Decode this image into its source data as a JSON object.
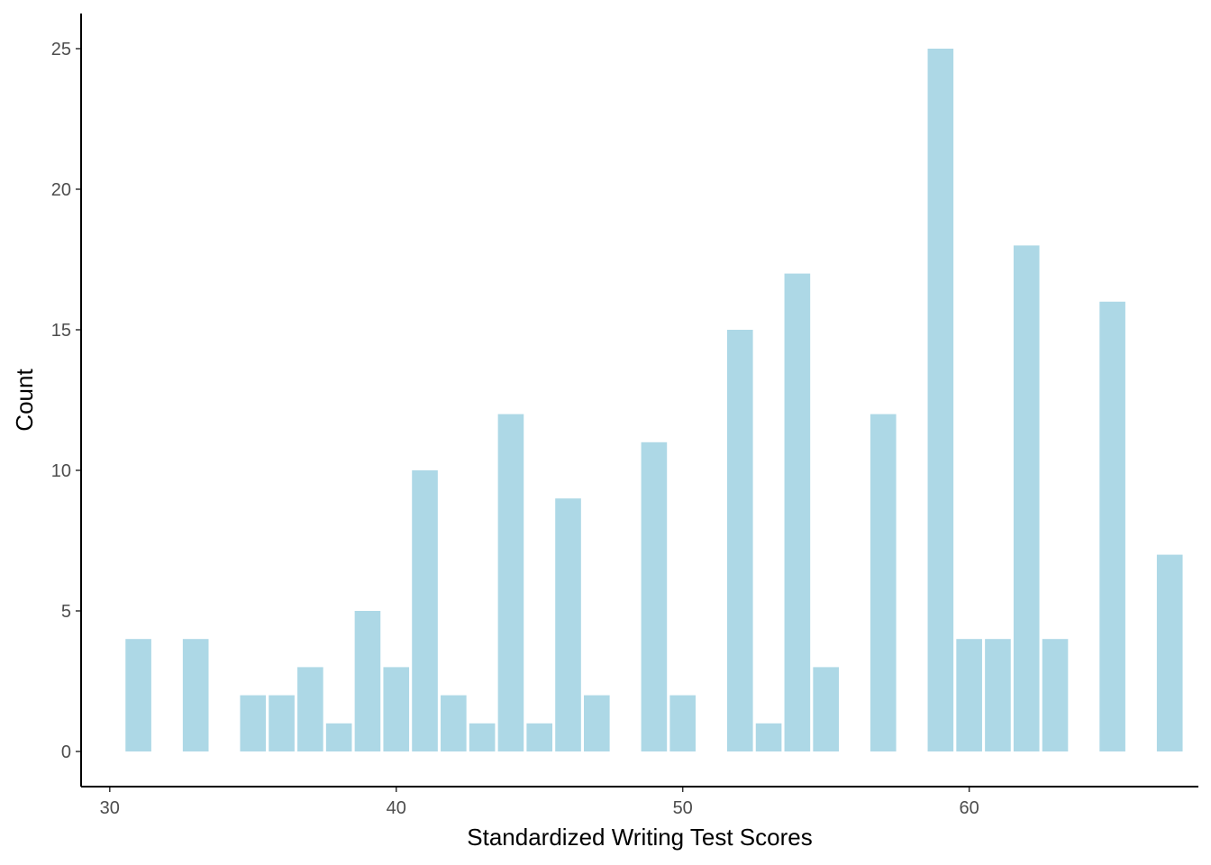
{
  "chart_data": {
    "type": "bar",
    "title": "",
    "xlabel": "Standardized Writing Test Scores",
    "ylabel": "Count",
    "xlim": [
      29,
      68
    ],
    "ylim": [
      -1.25,
      26.25
    ],
    "x_ticks": [
      30,
      40,
      50,
      60
    ],
    "y_ticks": [
      0,
      5,
      10,
      15,
      20,
      25
    ],
    "grid": false,
    "legend": "none",
    "bar_color": "#add8e6",
    "axis_color": "#000000",
    "bars": [
      {
        "x": 31,
        "count": 4
      },
      {
        "x": 33,
        "count": 4
      },
      {
        "x": 35,
        "count": 2
      },
      {
        "x": 36,
        "count": 2
      },
      {
        "x": 37,
        "count": 3
      },
      {
        "x": 38,
        "count": 1
      },
      {
        "x": 39,
        "count": 5
      },
      {
        "x": 40,
        "count": 3
      },
      {
        "x": 41,
        "count": 10
      },
      {
        "x": 42,
        "count": 2
      },
      {
        "x": 43,
        "count": 1
      },
      {
        "x": 44,
        "count": 12
      },
      {
        "x": 45,
        "count": 1
      },
      {
        "x": 46,
        "count": 9
      },
      {
        "x": 47,
        "count": 2
      },
      {
        "x": 49,
        "count": 11
      },
      {
        "x": 50,
        "count": 2
      },
      {
        "x": 52,
        "count": 15
      },
      {
        "x": 53,
        "count": 1
      },
      {
        "x": 54,
        "count": 17
      },
      {
        "x": 55,
        "count": 3
      },
      {
        "x": 57,
        "count": 12
      },
      {
        "x": 59,
        "count": 25
      },
      {
        "x": 60,
        "count": 4
      },
      {
        "x": 61,
        "count": 4
      },
      {
        "x": 62,
        "count": 18
      },
      {
        "x": 63,
        "count": 4
      },
      {
        "x": 65,
        "count": 16
      },
      {
        "x": 67,
        "count": 7
      }
    ]
  }
}
